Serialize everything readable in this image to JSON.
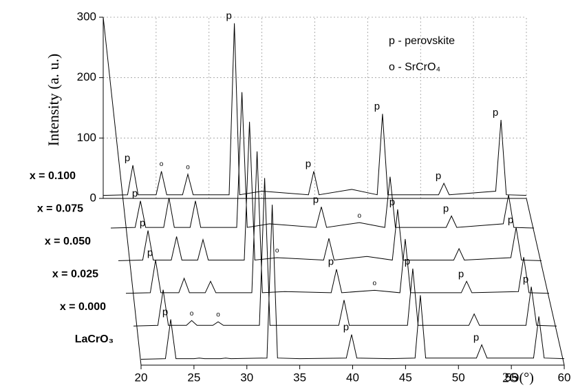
{
  "chart_data": {
    "type": "waterfall",
    "legend": [
      "p - perovskite",
      "o - SrCrO₄"
    ],
    "x_label": "2Θ(°)",
    "y_label": "Intensity (a. u.)",
    "xlim": [
      20,
      60
    ],
    "xticks": [
      20,
      25,
      30,
      35,
      40,
      45,
      50,
      55,
      60
    ],
    "ylim": [
      0,
      300
    ],
    "yticks": [
      0,
      100,
      200,
      300
    ],
    "grid": true,
    "x": [
      20,
      22.3,
      22.8,
      23.3,
      25.0,
      25.5,
      26.0,
      27.5,
      28.0,
      28.5,
      31.9,
      32.4,
      32.9,
      35.0,
      39.4,
      39.9,
      40.4,
      43.5,
      45.9,
      46.4,
      46.9,
      51.7,
      52.2,
      52.7,
      57.1,
      57.6,
      58.1,
      60
    ],
    "series": [
      {
        "name": "LaCrO₃",
        "color": "#000000",
        "values": [
          4,
          5,
          70,
          5,
          5,
          6,
          5,
          5,
          6,
          5,
          6,
          260,
          6,
          5,
          6,
          45,
          6,
          5,
          6,
          110,
          6,
          6,
          28,
          6,
          6,
          75,
          6,
          5
        ],
        "annotations": [
          {
            "x": 22.8,
            "text": "p"
          },
          {
            "x": 39.9,
            "text": "p"
          },
          {
            "x": 52.2,
            "text": "p"
          }
        ]
      },
      {
        "name": "x = 0.000",
        "color": "#000000",
        "values": [
          5,
          6,
          65,
          6,
          6,
          14,
          6,
          6,
          12,
          6,
          6,
          250,
          6,
          6,
          6,
          48,
          6,
          6,
          6,
          100,
          6,
          6,
          25,
          6,
          6,
          70,
          6,
          5
        ],
        "annotations": [
          {
            "x": 25.5,
            "text": "o"
          },
          {
            "x": 28.0,
            "text": "o"
          },
          {
            "x": 46.4,
            "text": "p"
          },
          {
            "x": 57.6,
            "text": "p"
          }
        ]
      },
      {
        "name": "x = 0.025",
        "color": "#000000",
        "values": [
          5,
          6,
          60,
          6,
          6,
          30,
          6,
          6,
          25,
          6,
          6,
          240,
          6,
          8,
          6,
          45,
          6,
          10,
          6,
          95,
          6,
          6,
          25,
          6,
          8,
          65,
          6,
          5
        ],
        "annotations": [
          {
            "x": 22.8,
            "text": "p"
          },
          {
            "x": 39.9,
            "text": "p"
          },
          {
            "x": 43.5,
            "text": "o"
          },
          {
            "x": 52.2,
            "text": "p"
          }
        ]
      },
      {
        "name": "x = 0.050",
        "color": "#000000",
        "values": [
          5,
          6,
          55,
          6,
          6,
          45,
          6,
          6,
          40,
          6,
          6,
          235,
          6,
          10,
          6,
          42,
          6,
          12,
          6,
          90,
          6,
          6,
          25,
          6,
          10,
          60,
          6,
          5
        ],
        "annotations": [
          {
            "x": 22.8,
            "text": "p"
          },
          {
            "x": 35.0,
            "text": "o"
          },
          {
            "x": 46.4,
            "text": "p"
          },
          {
            "x": 57.6,
            "text": "p"
          }
        ]
      },
      {
        "name": "x = 0.075",
        "color": "#000000",
        "values": [
          5,
          6,
          50,
          6,
          6,
          55,
          6,
          6,
          50,
          6,
          6,
          230,
          6,
          12,
          6,
          40,
          6,
          14,
          6,
          90,
          6,
          6,
          25,
          6,
          12,
          60,
          6,
          5
        ],
        "annotations": [
          {
            "x": 22.8,
            "text": "p"
          },
          {
            "x": 39.9,
            "text": "p"
          },
          {
            "x": 43.5,
            "text": "o"
          },
          {
            "x": 52.2,
            "text": "p"
          }
        ]
      },
      {
        "name": "x = 0.100",
        "color": "#000000",
        "values": [
          5,
          6,
          55,
          6,
          6,
          45,
          6,
          6,
          40,
          6,
          6,
          290,
          6,
          12,
          6,
          45,
          6,
          15,
          6,
          140,
          6,
          6,
          25,
          6,
          12,
          130,
          6,
          5
        ],
        "annotations": [
          {
            "x": 22.8,
            "text": "p"
          },
          {
            "x": 25.5,
            "text": "o"
          },
          {
            "x": 28.0,
            "text": "o"
          },
          {
            "x": 32.4,
            "text": "p"
          },
          {
            "x": 39.9,
            "text": "p"
          },
          {
            "x": 46.4,
            "text": "p"
          },
          {
            "x": 52.2,
            "text": "p"
          },
          {
            "x": 57.6,
            "text": "p"
          }
        ]
      }
    ]
  }
}
